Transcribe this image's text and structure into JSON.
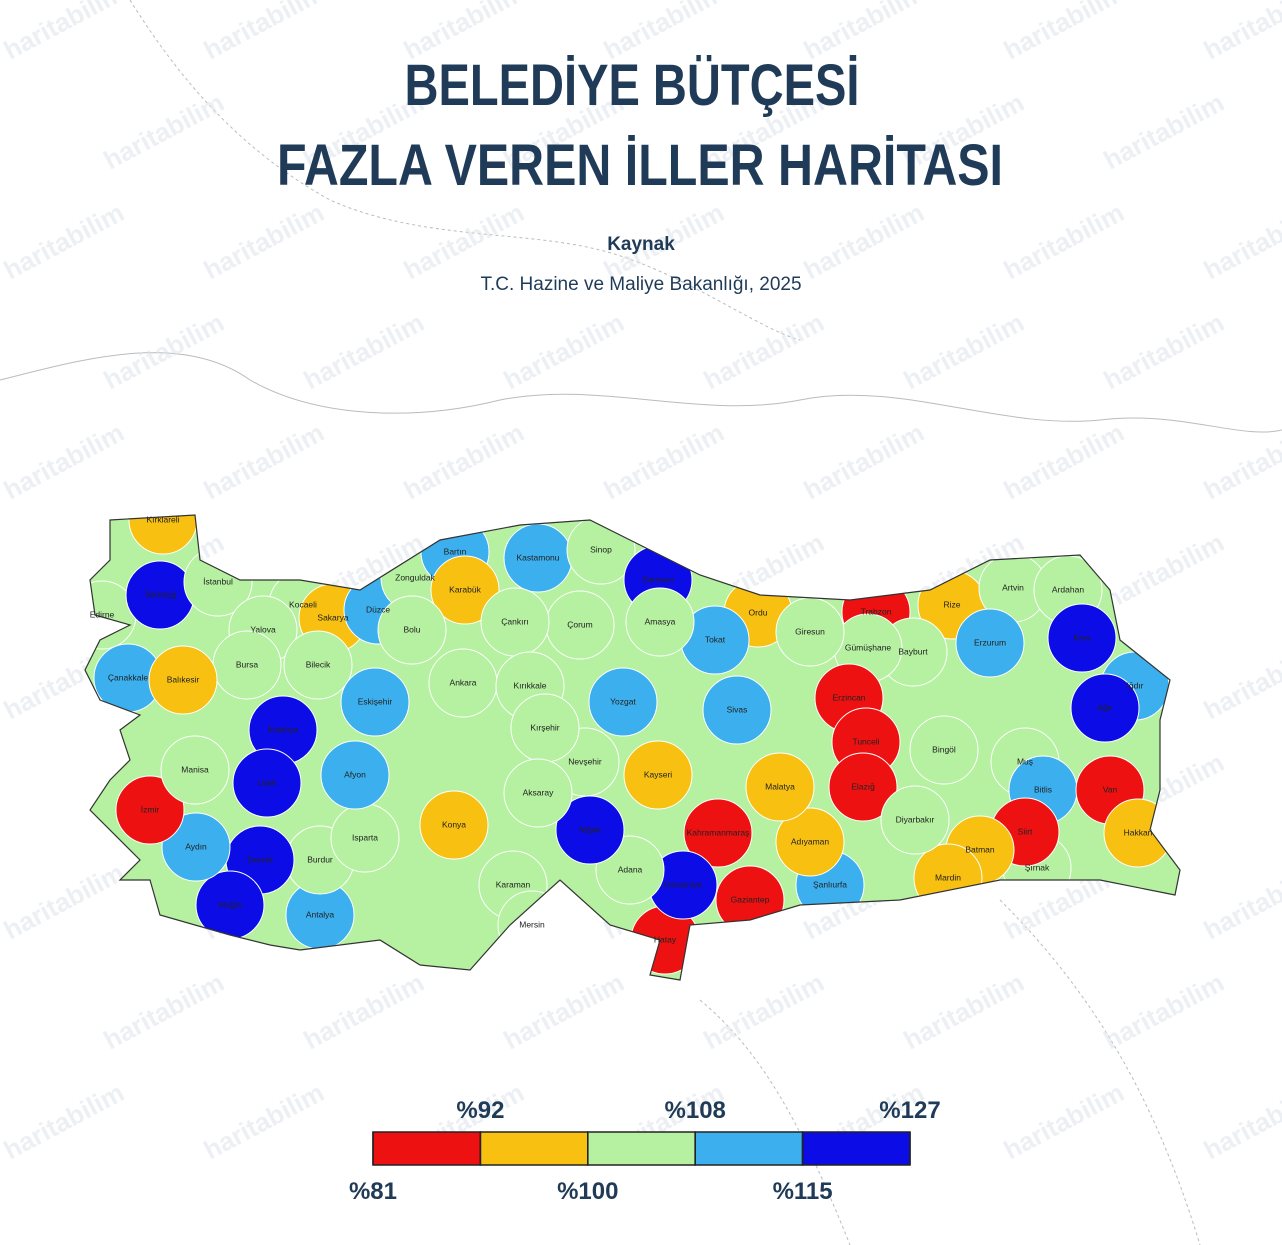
{
  "header": {
    "title_lines": [
      "BELEDİYE BÜTÇESİ",
      "FAZLA VEREN İLLER HARİTASI"
    ],
    "source_label": "Kaynak",
    "source": "T.C. Hazine ve Maliye Bakanlığı, 2025"
  },
  "watermark": "haritabilim",
  "provinces": [
    {
      "name": "Kırklareli",
      "color": "#f8c010"
    },
    {
      "name": "Edirne",
      "color": "#b5f1a0"
    },
    {
      "name": "Tekirdağ",
      "color": "#0c0ce6"
    },
    {
      "name": "İstanbul",
      "color": "#b5f1a0"
    },
    {
      "name": "Kocaeli",
      "color": "#b5f1a0"
    },
    {
      "name": "Yalova",
      "color": "#b5f1a0"
    },
    {
      "name": "Sakarya",
      "color": "#f8c010"
    },
    {
      "name": "Düzce",
      "color": "#3cb0ee"
    },
    {
      "name": "Zonguldak",
      "color": "#b5f1a0"
    },
    {
      "name": "Bartın",
      "color": "#3cb0ee"
    },
    {
      "name": "Karabük",
      "color": "#f8c010"
    },
    {
      "name": "Kastamonu",
      "color": "#3cb0ee"
    },
    {
      "name": "Sinop",
      "color": "#b5f1a0"
    },
    {
      "name": "Samsun",
      "color": "#0c0ce6"
    },
    {
      "name": "Ordu",
      "color": "#f8c010"
    },
    {
      "name": "Trabzon",
      "color": "#ee1111"
    },
    {
      "name": "Rize",
      "color": "#f8c010"
    },
    {
      "name": "Artvin",
      "color": "#b5f1a0"
    },
    {
      "name": "Ardahan",
      "color": "#b5f1a0"
    },
    {
      "name": "Kars",
      "color": "#0c0ce6"
    },
    {
      "name": "Iğdır",
      "color": "#3cb0ee"
    },
    {
      "name": "Ağrı",
      "color": "#0c0ce6"
    },
    {
      "name": "Erzurum",
      "color": "#3cb0ee"
    },
    {
      "name": "Bayburt",
      "color": "#b5f1a0"
    },
    {
      "name": "Gümüşhane",
      "color": "#b5f1a0"
    },
    {
      "name": "Giresun",
      "color": "#b5f1a0"
    },
    {
      "name": "Tokat",
      "color": "#3cb0ee"
    },
    {
      "name": "Amasya",
      "color": "#b5f1a0"
    },
    {
      "name": "Çorum",
      "color": "#b5f1a0"
    },
    {
      "name": "Çankırı",
      "color": "#b5f1a0"
    },
    {
      "name": "Bolu",
      "color": "#b5f1a0"
    },
    {
      "name": "Bilecik",
      "color": "#b5f1a0"
    },
    {
      "name": "Bursa",
      "color": "#b5f1a0"
    },
    {
      "name": "Çanakkale",
      "color": "#3cb0ee"
    },
    {
      "name": "Balıkesir",
      "color": "#f8c010"
    },
    {
      "name": "Ankara",
      "color": "#b5f1a0"
    },
    {
      "name": "Kırıkkale",
      "color": "#b5f1a0"
    },
    {
      "name": "Yozgat",
      "color": "#3cb0ee"
    },
    {
      "name": "Sivas",
      "color": "#3cb0ee"
    },
    {
      "name": "Erzincan",
      "color": "#ee1111"
    },
    {
      "name": "Tunceli",
      "color": "#ee1111"
    },
    {
      "name": "Elazığ",
      "color": "#ee1111"
    },
    {
      "name": "Bingöl",
      "color": "#b5f1a0"
    },
    {
      "name": "Muş",
      "color": "#b5f1a0"
    },
    {
      "name": "Bitlis",
      "color": "#3cb0ee"
    },
    {
      "name": "Van",
      "color": "#ee1111"
    },
    {
      "name": "Hakkari",
      "color": "#f8c010"
    },
    {
      "name": "Şırnak",
      "color": "#b5f1a0"
    },
    {
      "name": "Siirt",
      "color": "#ee1111"
    },
    {
      "name": "Batman",
      "color": "#f8c010"
    },
    {
      "name": "Mardin",
      "color": "#f8c010"
    },
    {
      "name": "Diyarbakır",
      "color": "#b5f1a0"
    },
    {
      "name": "Şanlıurfa",
      "color": "#3cb0ee"
    },
    {
      "name": "Adıyaman",
      "color": "#f8c010"
    },
    {
      "name": "Malatya",
      "color": "#f8c010"
    },
    {
      "name": "Kahramanmaraş",
      "color": "#ee1111"
    },
    {
      "name": "Gaziantep",
      "color": "#ee1111"
    },
    {
      "name": "Hatay",
      "color": "#ee1111"
    },
    {
      "name": "Osmaniye",
      "color": "#0c0ce6"
    },
    {
      "name": "Adana",
      "color": "#b5f1a0"
    },
    {
      "name": "Kayseri",
      "color": "#f8c010"
    },
    {
      "name": "Niğde",
      "color": "#0c0ce6"
    },
    {
      "name": "Nevşehir",
      "color": "#b5f1a0"
    },
    {
      "name": "Kırşehir",
      "color": "#b5f1a0"
    },
    {
      "name": "Aksaray",
      "color": "#b5f1a0"
    },
    {
      "name": "Konya",
      "color": "#f8c010"
    },
    {
      "name": "Karaman",
      "color": "#b5f1a0"
    },
    {
      "name": "Mersin",
      "color": "#b5f1a0"
    },
    {
      "name": "Antalya",
      "color": "#3cb0ee"
    },
    {
      "name": "Burdur",
      "color": "#b5f1a0"
    },
    {
      "name": "Isparta",
      "color": "#b5f1a0"
    },
    {
      "name": "Afyon",
      "color": "#3cb0ee"
    },
    {
      "name": "Eskişehir",
      "color": "#3cb0ee"
    },
    {
      "name": "Kütahya",
      "color": "#0c0ce6"
    },
    {
      "name": "Uşak",
      "color": "#0c0ce6"
    },
    {
      "name": "Denizli",
      "color": "#0c0ce6"
    },
    {
      "name": "Muğla",
      "color": "#0c0ce6"
    },
    {
      "name": "Aydın",
      "color": "#3cb0ee"
    },
    {
      "name": "İzmir",
      "color": "#ee1111"
    },
    {
      "name": "Manisa",
      "color": "#b5f1a0"
    }
  ],
  "legend": {
    "ticks": [
      {
        "value": 81,
        "label": "%81"
      },
      {
        "value": 92,
        "label": "%92"
      },
      {
        "value": 100,
        "label": "%100"
      },
      {
        "value": 108,
        "label": "%108"
      },
      {
        "value": 115,
        "label": "%115"
      },
      {
        "value": 127,
        "label": "%127"
      }
    ],
    "colors": [
      "#ee1111",
      "#f8c010",
      "#b5f1a0",
      "#3cb0ee",
      "#0c0ce6"
    ]
  }
}
